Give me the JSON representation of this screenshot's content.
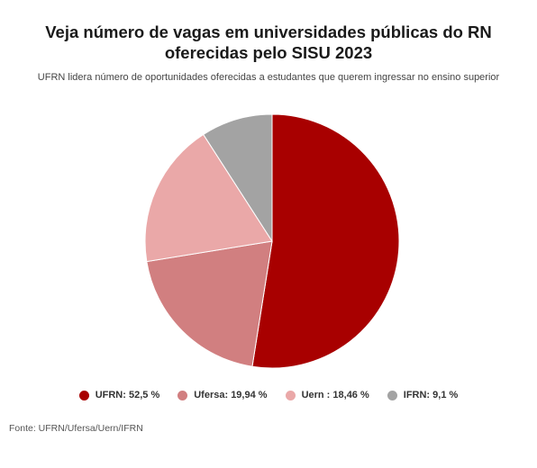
{
  "title": "Veja número de vagas em universidades públicas do RN oferecidas pelo SISU 2023",
  "subtitle": "UFRN lidera número de oportunidades oferecidas a estudantes que querem ingressar no ensino superior",
  "source": "Fonte: UFRN/Ufersa/Uern/IFRN",
  "legend_items": [
    {
      "label": "UFRN: 52,5 %"
    },
    {
      "label": "Ufersa: 19,94 %"
    },
    {
      "label": "Uern : 18,46 %"
    },
    {
      "label": "IFRN: 9,1 %"
    }
  ],
  "chart_data": {
    "type": "pie",
    "title": "Veja número de vagas em universidades públicas do RN oferecidas pelo SISU 2023",
    "subtitle": "UFRN lidera número de oportunidades oferecidas a estudantes que querem ingressar no ensino superior",
    "categories": [
      "UFRN",
      "Ufersa",
      "Uern",
      "IFRN"
    ],
    "values": [
      52.5,
      19.94,
      18.46,
      9.1
    ],
    "unit": "%",
    "colors": [
      "#a80000",
      "#d17f80",
      "#eaa8a8",
      "#a3a3a3"
    ],
    "legend": "bottom",
    "start": "top, clockwise"
  }
}
